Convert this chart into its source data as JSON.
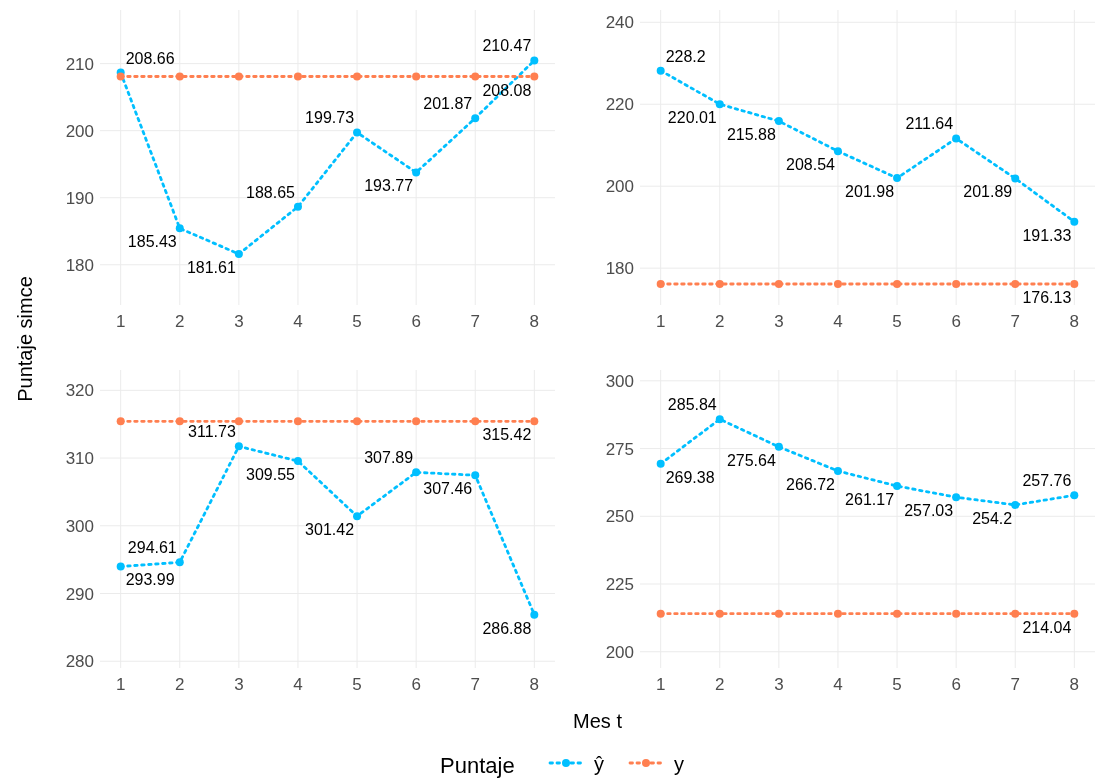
{
  "chart_data": [
    {
      "type": "line",
      "xlabel": "Mes t",
      "ylabel": "Puntaje simce",
      "legend_title": "Puntaje",
      "legend": "bottom",
      "grid": true,
      "marker": "circle",
      "line_style": "dotted",
      "x": [
        1,
        2,
        3,
        4,
        5,
        6,
        7,
        8
      ],
      "xlim": [
        0.65,
        8.35
      ],
      "xticks": [
        1,
        2,
        3,
        4,
        5,
        6,
        7,
        8
      ],
      "ylim": [
        174,
        218
      ],
      "yticks": [
        180,
        190,
        200,
        210
      ],
      "series": [
        {
          "name": "ŷ",
          "color": "#00bfff",
          "values": [
            208.66,
            185.43,
            181.61,
            188.65,
            199.73,
            193.77,
            201.87,
            210.47
          ],
          "value_labels": [
            "208.66",
            "185.43",
            "181.61",
            "188.65",
            "199.73",
            "193.77",
            "201.87",
            "210.47"
          ]
        },
        {
          "name": "y",
          "color": "#ff7f50",
          "values": [
            208.08,
            208.08,
            208.08,
            208.08,
            208.08,
            208.08,
            208.08,
            208.08
          ],
          "value_labels": [
            null,
            null,
            null,
            null,
            null,
            null,
            null,
            "208.08"
          ]
        }
      ]
    },
    {
      "type": "line",
      "grid": true,
      "marker": "circle",
      "line_style": "dotted",
      "x": [
        1,
        2,
        3,
        4,
        5,
        6,
        7,
        8
      ],
      "xlim": [
        0.65,
        8.35
      ],
      "xticks": [
        1,
        2,
        3,
        4,
        5,
        6,
        7,
        8
      ],
      "ylim": [
        171,
        243
      ],
      "yticks": [
        180,
        200,
        220,
        240
      ],
      "series": [
        {
          "color": "#00bfff",
          "values": [
            228.2,
            220.01,
            215.88,
            208.54,
            201.98,
            211.64,
            201.89,
            191.33
          ],
          "value_labels": [
            "228.2",
            "220.01",
            "215.88",
            "208.54",
            "201.98",
            "211.64",
            "201.89",
            "191.33"
          ]
        },
        {
          "color": "#ff7f50",
          "values": [
            176.13,
            176.13,
            176.13,
            176.13,
            176.13,
            176.13,
            176.13,
            176.13
          ],
          "value_labels": [
            null,
            null,
            null,
            null,
            null,
            null,
            null,
            "176.13"
          ]
        }
      ]
    },
    {
      "type": "line",
      "grid": true,
      "marker": "circle",
      "line_style": "dotted",
      "x": [
        1,
        2,
        3,
        4,
        5,
        6,
        7,
        8
      ],
      "xlim": [
        0.65,
        8.35
      ],
      "xticks": [
        1,
        2,
        3,
        4,
        5,
        6,
        7,
        8
      ],
      "ylim": [
        279,
        323
      ],
      "yticks": [
        280,
        290,
        300,
        310,
        320
      ],
      "series": [
        {
          "color": "#00bfff",
          "values": [
            293.99,
            294.61,
            311.73,
            309.55,
            301.42,
            307.89,
            307.46,
            286.88
          ],
          "value_labels": [
            "293.99",
            "294.61",
            "311.73",
            "309.55",
            "301.42",
            "307.89",
            "307.46",
            "286.88"
          ]
        },
        {
          "color": "#ff7f50",
          "values": [
            315.42,
            315.42,
            315.42,
            315.42,
            315.42,
            315.42,
            315.42,
            315.42
          ],
          "value_labels": [
            null,
            null,
            null,
            null,
            null,
            null,
            null,
            "315.42"
          ]
        }
      ]
    },
    {
      "type": "line",
      "grid": true,
      "marker": "circle",
      "line_style": "dotted",
      "x": [
        1,
        2,
        3,
        4,
        5,
        6,
        7,
        8
      ],
      "xlim": [
        0.65,
        8.35
      ],
      "xticks": [
        1,
        2,
        3,
        4,
        5,
        6,
        7,
        8
      ],
      "ylim": [
        194,
        304
      ],
      "yticks": [
        200,
        225,
        250,
        275,
        300
      ],
      "series": [
        {
          "color": "#00bfff",
          "values": [
            269.38,
            285.84,
            275.64,
            266.72,
            261.17,
            257.03,
            254.2,
            257.76
          ],
          "value_labels": [
            "269.38",
            "285.84",
            "275.64",
            "266.72",
            "261.17",
            "257.03",
            "254.2",
            "257.76"
          ]
        },
        {
          "color": "#ff7f50",
          "values": [
            214.04,
            214.04,
            214.04,
            214.04,
            214.04,
            214.04,
            214.04,
            214.04
          ],
          "value_labels": [
            null,
            null,
            null,
            null,
            null,
            null,
            null,
            "214.04"
          ]
        }
      ]
    }
  ]
}
